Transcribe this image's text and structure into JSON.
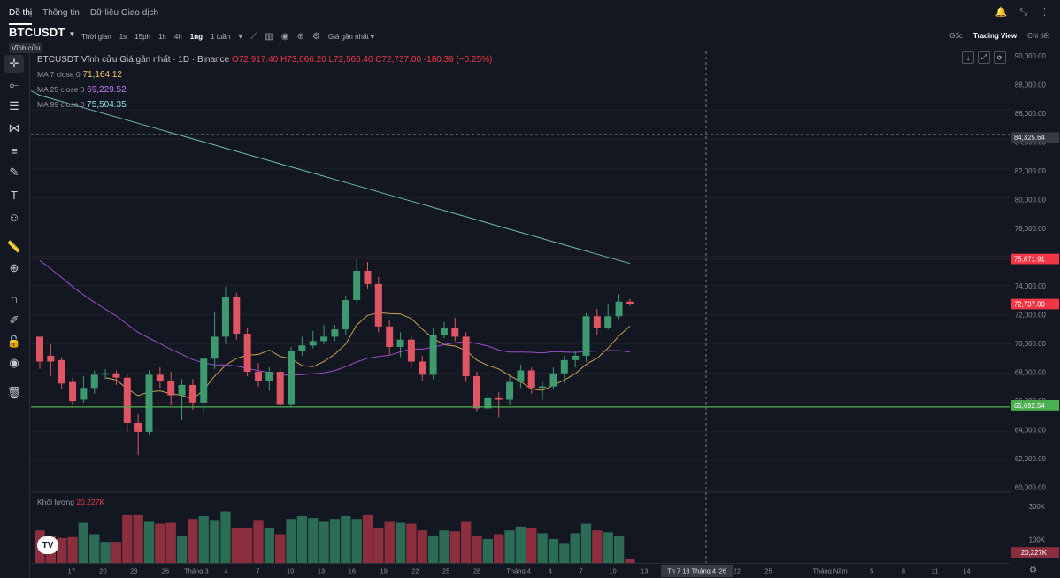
{
  "topnav": {
    "tabs": [
      "Đồ thị",
      "Thông tin",
      "Dữ liệu Giao dịch"
    ],
    "active_tab": 0
  },
  "toolbar": {
    "symbol": "BTCUSDT",
    "badge": "Vĩnh cửu",
    "timeframe_label": "Thời gian",
    "timeframes": [
      "1s",
      "15ph",
      "1h",
      "4h",
      "1ng",
      "1 tuần"
    ],
    "active_timeframe": "1ng",
    "price_type": "Giá gần nhất",
    "views": [
      "Gốc",
      "Trading View",
      "Chi tiết"
    ],
    "active_view": "Trading View"
  },
  "legend": {
    "title": "BTCUSDT Vĩnh cửu Giá gần nhất · 1D · Binance",
    "ohlc": "O72,917.40  H73,066.20  L72,566.40  C72,737.00  -180.39 (−0.25%)",
    "ma7_label": "MA 7 close 0",
    "ma7_value": "71,164.12",
    "ma25_label": "MA 25 close 0",
    "ma25_value": "69,229.52",
    "ma99_label": "MA 99 close 0",
    "ma99_value": "75,504.35",
    "volume_label": "Khối lượng",
    "volume_value": "20,227K"
  },
  "price_axis": {
    "labels": [
      "90,000.00",
      "88,000.00",
      "86,000.00",
      "84,000.00",
      "82,000.00",
      "80,000.00",
      "78,000.00",
      "76,000.00",
      "74,000.00",
      "72,000.00",
      "70,000.00",
      "68,000.00",
      "66,000.00",
      "64,000.00",
      "62,000.00",
      "60,000.00"
    ],
    "crosshair_value": "84,325.64",
    "resistance_value": "75,871.91",
    "last_price_value": "72,737.00",
    "support_value": "65,692.54",
    "volume_labels": [
      "300K",
      "100K"
    ],
    "volume_last": "20,227K"
  },
  "time_axis": {
    "labels": [
      "17",
      "20",
      "23",
      "26",
      "Tháng 3",
      "4",
      "7",
      "10",
      "13",
      "16",
      "19",
      "22",
      "25",
      "28",
      "Tháng 4",
      "4",
      "7",
      "10",
      "13",
      "22",
      "25",
      "Tháng Năm",
      "5",
      "8",
      "11",
      "14"
    ],
    "crosshair_date": "Th 7 18 Tháng 4 '26"
  },
  "colors": {
    "up": "#3d9970",
    "down": "#e05563",
    "ma7": "#c9a14f",
    "ma25": "#9b4dc7",
    "ma99": "#6fb7b0",
    "resistance": "#f23645",
    "support": "#4caf50"
  },
  "chart_data": {
    "type": "candlestick",
    "price_range": [
      60000,
      90000
    ],
    "candles": [
      [
        70500,
        68800,
        70000,
        68300
      ],
      [
        69200,
        68800,
        70000,
        67800
      ],
      [
        68900,
        67300,
        69100,
        66900
      ],
      [
        67400,
        66100,
        67700,
        65800
      ],
      [
        66200,
        67000,
        67800,
        66000
      ],
      [
        67000,
        67900,
        68200,
        66600
      ],
      [
        67900,
        68000,
        68300,
        67600
      ],
      [
        68000,
        67700,
        68200,
        67200
      ],
      [
        67700,
        64600,
        67900,
        64000
      ],
      [
        64600,
        64000,
        65200,
        62400
      ],
      [
        64000,
        67900,
        68200,
        63800
      ],
      [
        67900,
        67500,
        68400,
        67000
      ],
      [
        67500,
        66500,
        68100,
        65800
      ],
      [
        66500,
        67200,
        67600,
        64800
      ],
      [
        67200,
        66000,
        67600,
        65500
      ],
      [
        66000,
        69000,
        69100,
        65200
      ],
      [
        69000,
        70500,
        72200,
        68300
      ],
      [
        70500,
        73200,
        73900,
        70000
      ],
      [
        73200,
        70700,
        73500,
        70300
      ],
      [
        70700,
        68100,
        71100,
        67800
      ],
      [
        68100,
        67500,
        68700,
        67100
      ],
      [
        67500,
        68100,
        68400,
        66800
      ],
      [
        68100,
        65900,
        68400,
        65600
      ],
      [
        65900,
        69500,
        69800,
        65700
      ],
      [
        69500,
        69900,
        70500,
        69200
      ],
      [
        69900,
        70200,
        70900,
        69700
      ],
      [
        70200,
        70500,
        71300,
        70000
      ],
      [
        70500,
        71000,
        71300,
        70200
      ],
      [
        71000,
        73000,
        73300,
        70600
      ],
      [
        73000,
        75000,
        75800,
        72800
      ],
      [
        75000,
        74100,
        75600,
        73800
      ],
      [
        74100,
        71200,
        74600,
        70800
      ],
      [
        71200,
        69800,
        71600,
        69300
      ],
      [
        69800,
        70300,
        70800,
        69100
      ],
      [
        70300,
        68800,
        70500,
        68400
      ],
      [
        68800,
        67900,
        69200,
        67500
      ],
      [
        67900,
        70600,
        71100,
        67600
      ],
      [
        70600,
        71100,
        71500,
        70400
      ],
      [
        71100,
        70500,
        71800,
        70200
      ],
      [
        70500,
        67800,
        70800,
        67400
      ],
      [
        67800,
        65600,
        68100,
        65400
      ],
      [
        65600,
        66300,
        66600,
        65500
      ],
      [
        66300,
        66200,
        66700,
        65000
      ],
      [
        66200,
        67400,
        67800,
        65800
      ],
      [
        67400,
        68200,
        68600,
        67000
      ],
      [
        68200,
        67000,
        68400,
        66600
      ],
      [
        67000,
        67100,
        67400,
        66200
      ],
      [
        67100,
        68000,
        68400,
        66900
      ],
      [
        68000,
        68900,
        69200,
        67300
      ],
      [
        68900,
        69200,
        69500,
        68400
      ],
      [
        69200,
        71900,
        72100,
        68800
      ],
      [
        71900,
        71100,
        72400,
        70600
      ],
      [
        71100,
        71900,
        72700,
        71000
      ],
      [
        71900,
        72900,
        73400,
        71700
      ],
      [
        72900,
        72700,
        73100,
        72600
      ]
    ],
    "volumes": [
      170,
      140,
      130,
      135,
      210,
      150,
      110,
      110,
      250,
      250,
      215,
      205,
      210,
      140,
      230,
      245,
      220,
      270,
      180,
      185,
      220,
      180,
      150,
      230,
      245,
      235,
      215,
      230,
      245,
      230,
      250,
      185,
      215,
      210,
      205,
      170,
      140,
      170,
      165,
      215,
      140,
      125,
      150,
      170,
      190,
      180,
      155,
      125,
      100,
      155,
      205,
      170,
      160,
      140,
      20
    ]
  }
}
